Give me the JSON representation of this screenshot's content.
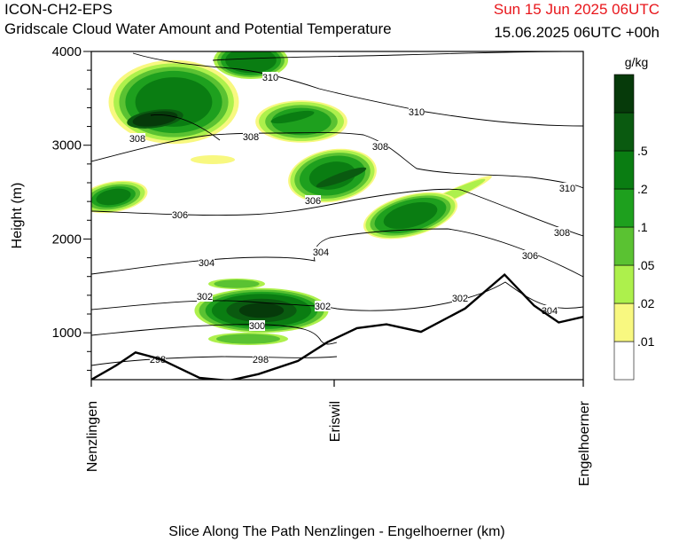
{
  "header": {
    "model": "ICON-CH2-EPS",
    "subtitle": "Gridscale Cloud Water Amount and Potential Temperature",
    "valid_time": "Sun 15 Jun 2025 06UTC",
    "run_info": "15.06.2025 06UTC +00h"
  },
  "colors": {
    "valid_time": "#e8161b",
    "cloud_levels": [
      "#ffffff",
      "#f8f880",
      "#adf04c",
      "#5ac232",
      "#1ea01e",
      "#0a7d12",
      "#0a5a10",
      "#063a0a"
    ],
    "terrain": "#000000",
    "isentropes": "#000000"
  },
  "chart_data": {
    "type": "heatmap",
    "title": "Gridscale Cloud Water Amount and Potential Temperature",
    "xlabel": "Slice Along The Path Nenzlingen - Engelhoerner (km)",
    "ylabel": "Height (m)",
    "ylim": [
      500,
      4000
    ],
    "yticks": [
      1000,
      2000,
      3000,
      4000
    ],
    "x_locations": [
      "Nenzlingen",
      "Eriswil",
      "Engelhoerner"
    ],
    "colorbar": {
      "unit": "g/kg",
      "levels": [
        ".01",
        ".02",
        ".05",
        ".1",
        ".2",
        ".5"
      ]
    },
    "isentrope_labels": [
      "298",
      "298",
      "300",
      "302",
      "302",
      "302",
      "304",
      "304",
      "304",
      "306",
      "306",
      "306",
      "308",
      "308",
      "308",
      "308",
      "310",
      "310",
      "310"
    ],
    "terrain_profile": [
      {
        "x": 0.0,
        "h": 500
      },
      {
        "x": 0.05,
        "h": 650
      },
      {
        "x": 0.09,
        "h": 790
      },
      {
        "x": 0.14,
        "h": 720
      },
      {
        "x": 0.22,
        "h": 520
      },
      {
        "x": 0.28,
        "h": 490
      },
      {
        "x": 0.34,
        "h": 560
      },
      {
        "x": 0.42,
        "h": 700
      },
      {
        "x": 0.48,
        "h": 900
      },
      {
        "x": 0.54,
        "h": 1050
      },
      {
        "x": 0.6,
        "h": 1090
      },
      {
        "x": 0.67,
        "h": 1010
      },
      {
        "x": 0.76,
        "h": 1260
      },
      {
        "x": 0.84,
        "h": 1620
      },
      {
        "x": 0.9,
        "h": 1290
      },
      {
        "x": 0.95,
        "h": 1110
      },
      {
        "x": 1.0,
        "h": 1170
      }
    ]
  }
}
